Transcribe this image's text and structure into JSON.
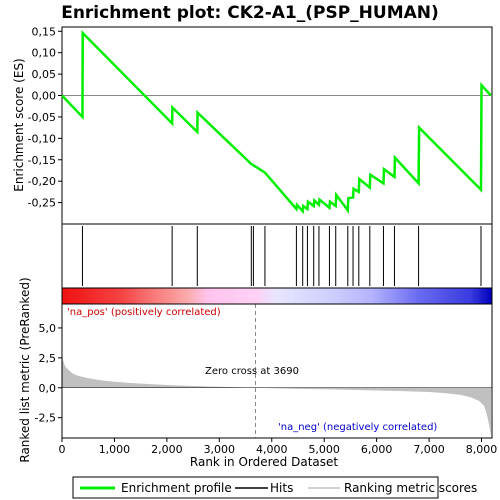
{
  "chart_data": {
    "type": "line",
    "title": "Enrichment plot: CK2-A1_(PSP_HUMAN)",
    "xlabel": "Rank in Ordered Dataset",
    "ylabel_top": "Enrichment score (ES)",
    "ylabel_bottom": "Ranked list metric (PreRanked)",
    "x_ticks": [
      "0",
      "1,000",
      "2,000",
      "3,000",
      "4,000",
      "5,000",
      "6,000",
      "7,000",
      "8,000"
    ],
    "x_tick_values": [
      0,
      1000,
      2000,
      3000,
      4000,
      5000,
      6000,
      7000,
      8000
    ],
    "xlim": [
      0,
      8200
    ],
    "es_ylim": [
      -0.3,
      0.16
    ],
    "es_ticks": [
      "0,15",
      "0,10",
      "0,05",
      "0,00",
      "-0,05",
      "-0,10",
      "-0,15",
      "-0,20",
      "-0,25"
    ],
    "es_tick_values": [
      0.15,
      0.1,
      0.05,
      0.0,
      -0.05,
      -0.1,
      -0.15,
      -0.2,
      -0.25
    ],
    "metric_ylim": [
      -4.2,
      7.0
    ],
    "metric_ticks": [
      "5,0",
      "2,5",
      "0,0",
      "-2,5"
    ],
    "metric_tick_values": [
      5.0,
      2.5,
      0.0,
      -2.5
    ],
    "enrichment_profile": {
      "name": "Enrichment profile",
      "color": "#00ee00",
      "x": [
        0,
        390,
        395,
        2100,
        2105,
        2580,
        2585,
        3610,
        3650,
        3870,
        4470,
        4480,
        4590,
        4600,
        4680,
        4690,
        4800,
        4810,
        4900,
        4910,
        5100,
        5110,
        5220,
        5230,
        5450,
        5460,
        5550,
        5560,
        5660,
        5670,
        5870,
        5880,
        6130,
        6140,
        6340,
        6350,
        6800,
        6810,
        7990,
        8000,
        8180
      ],
      "y": [
        0.0,
        -0.05,
        0.146,
        -0.065,
        -0.028,
        -0.085,
        -0.04,
        -0.16,
        -0.163,
        -0.18,
        -0.265,
        -0.255,
        -0.27,
        -0.258,
        -0.265,
        -0.248,
        -0.258,
        -0.245,
        -0.255,
        -0.243,
        -0.262,
        -0.248,
        -0.258,
        -0.232,
        -0.268,
        -0.24,
        -0.238,
        -0.218,
        -0.225,
        -0.195,
        -0.215,
        -0.185,
        -0.205,
        -0.172,
        -0.19,
        -0.145,
        -0.205,
        -0.075,
        -0.22,
        0.024,
        0.0
      ]
    },
    "hits": [
      390,
      2100,
      2580,
      3610,
      3650,
      3870,
      4470,
      4590,
      4680,
      4800,
      4900,
      5100,
      5220,
      5450,
      5550,
      5660,
      5870,
      6130,
      6340,
      6800,
      7990
    ],
    "ranked_metric": {
      "name": "Ranking metric scores",
      "color": "#c0c0c0",
      "x": [
        0,
        20,
        60,
        120,
        200,
        300,
        450,
        600,
        800,
        1000,
        1300,
        1600,
        2000,
        2500,
        3000,
        3690,
        4000,
        4500,
        5000,
        5500,
        6000,
        6500,
        7000,
        7300,
        7600,
        7800,
        7950,
        8050,
        8100,
        8150,
        8180
      ],
      "y": [
        2.8,
        2.3,
        1.8,
        1.5,
        1.2,
        1.0,
        0.85,
        0.72,
        0.6,
        0.5,
        0.4,
        0.32,
        0.23,
        0.15,
        0.08,
        0.0,
        -0.04,
        -0.09,
        -0.13,
        -0.18,
        -0.23,
        -0.28,
        -0.36,
        -0.45,
        -0.6,
        -0.8,
        -1.1,
        -1.5,
        -2.2,
        -3.2,
        -4.0
      ]
    },
    "zero_cross": 3690,
    "zero_cross_label": "Zero cross at 3690",
    "na_pos_label": "'na_pos' (positively correlated)",
    "na_neg_label": "'na_neg' (negatively correlated)",
    "legend": {
      "placement": "bottom",
      "entries": [
        "Enrichment profile",
        "Hits",
        "Ranking metric scores"
      ]
    },
    "colors": {
      "profile": "#00ee00",
      "hits": "#000000",
      "metric": "#c0c0c0",
      "pos_label": "#cc0000",
      "neg_label": "#0000cc"
    }
  }
}
